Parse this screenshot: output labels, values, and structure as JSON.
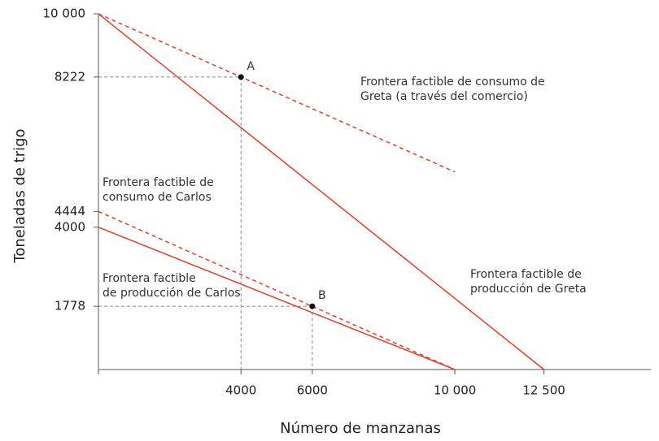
{
  "chart_data": {
    "type": "line",
    "x_label": "Número de manzanas",
    "y_label": "Toneladas de trigo",
    "xlim": [
      0,
      15500
    ],
    "ylim": [
      0,
      10000
    ],
    "xticks": [
      4000,
      6000,
      {
        "value": 10000,
        "label": "10 000"
      },
      {
        "value": 12500,
        "label": "12 500"
      }
    ],
    "yticks": [
      {
        "value": 10000,
        "label": "10 000"
      },
      8222,
      4444,
      4000,
      1778
    ],
    "series": [
      {
        "label": [
          "Frontera factible de consumo de",
          "Greta (a través del comercio)"
        ],
        "color": "#e0402a",
        "dashed": true,
        "x": [
          0,
          10000
        ],
        "values": [
          10000,
          5556
        ]
      },
      {
        "label": [
          "Frontera factible de",
          "producción de Greta"
        ],
        "color": "#e0402a",
        "dashed": false,
        "x": [
          0,
          12500
        ],
        "values": [
          10000,
          0
        ]
      },
      {
        "label": [
          "Frontera factible de",
          "consumo de Carlos"
        ],
        "color": "#e0402a",
        "dashed": true,
        "x": [
          0,
          10000
        ],
        "values": [
          4444,
          0
        ]
      },
      {
        "label": [
          "Frontera factible",
          "de producción de Carlos"
        ],
        "color": "#e0402a",
        "dashed": false,
        "x": [
          0,
          10000
        ],
        "values": [
          4000,
          0
        ]
      }
    ],
    "points": [
      {
        "label": "A",
        "x": 4000,
        "y": 8222
      },
      {
        "label": "B",
        "x": 6000,
        "y": 1778
      }
    ]
  }
}
